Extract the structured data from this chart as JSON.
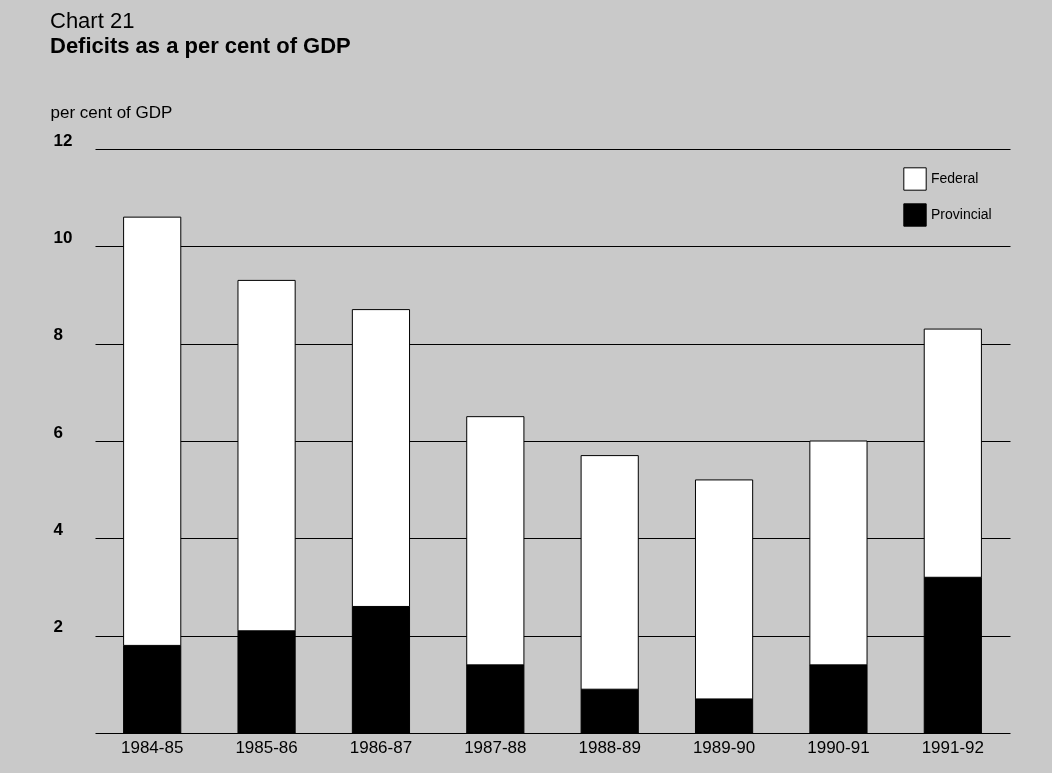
{
  "chart_data": {
    "type": "bar",
    "title": "Deficits as a per cent of GDP",
    "annotations": [
      "Chart 21"
    ],
    "ylabel": "per cent of GDP",
    "categories": [
      "1984-85",
      "1985-86",
      "1986-87",
      "1987-88",
      "1988-89",
      "1989-90",
      "1990-91",
      "1991-92"
    ],
    "stacked": true,
    "series": [
      {
        "name": "Provincial",
        "color": "#000000",
        "values": [
          1.8,
          2.1,
          2.6,
          1.4,
          0.9,
          0.7,
          1.4,
          3.2
        ]
      },
      {
        "name": "Federal",
        "color": "#ffffff",
        "values": [
          8.8,
          7.2,
          6.1,
          5.1,
          4.8,
          4.5,
          4.6,
          5.1
        ]
      }
    ],
    "ylim": [
      0,
      12
    ],
    "yticks": [
      {
        "value": 0,
        "label": null
      },
      2,
      4,
      6,
      8,
      10,
      12
    ],
    "grid": "y",
    "legend": "top right"
  }
}
